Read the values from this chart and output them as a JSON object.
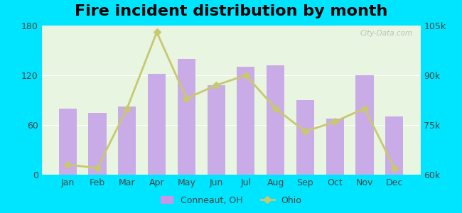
{
  "title": "Fire incident distribution by month",
  "months": [
    "Jan",
    "Feb",
    "Mar",
    "Apr",
    "May",
    "Jun",
    "Jul",
    "Aug",
    "Sep",
    "Oct",
    "Nov",
    "Dec"
  ],
  "bar_values": [
    80,
    75,
    82,
    122,
    140,
    108,
    130,
    132,
    90,
    68,
    120,
    70
  ],
  "line_values": [
    63000,
    62000,
    80000,
    103000,
    83000,
    87000,
    90000,
    80000,
    73000,
    76000,
    80000,
    62000
  ],
  "bar_color": "#c8a8e8",
  "line_color": "#c8c870",
  "bar_ylim": [
    0,
    180
  ],
  "line_ylim": [
    60000,
    105000
  ],
  "bar_yticks": [
    0,
    60,
    120,
    180
  ],
  "line_yticks": [
    60000,
    75000,
    90000,
    105000
  ],
  "line_ytick_labels": [
    "60k",
    "75k",
    "90k",
    "105k"
  ],
  "bar_ytick_labels": [
    "0",
    "60",
    "120",
    "180"
  ],
  "background_top": "#e8f5e0",
  "background_bottom": "#f5fff0",
  "outer_bg": "#00e5ff",
  "legend_conneaut_color": "#c897e8",
  "legend_ohio_color": "#c8c870",
  "title_fontsize": 16,
  "watermark": "City-Data.com"
}
